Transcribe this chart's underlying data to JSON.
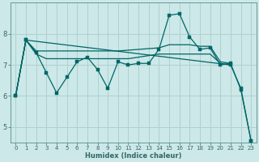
{
  "xlabel": "Humidex (Indice chaleur)",
  "background_color": "#cce8e8",
  "grid_color": "#b0d0d0",
  "line_color": "#006666",
  "spine_color": "#669999",
  "xlim": [
    -0.5,
    23.5
  ],
  "ylim": [
    4.5,
    9.0
  ],
  "xticks": [
    0,
    1,
    2,
    3,
    4,
    5,
    6,
    7,
    8,
    9,
    10,
    11,
    12,
    13,
    14,
    15,
    16,
    17,
    18,
    19,
    20,
    21,
    22,
    23
  ],
  "yticks": [
    5,
    6,
    7,
    8
  ],
  "series": {
    "jagged": {
      "x": [
        0,
        1,
        2,
        3,
        4,
        5,
        6,
        7,
        8,
        9,
        10,
        11,
        12,
        13,
        14,
        15,
        16,
        17,
        18,
        19,
        20,
        21,
        22,
        23
      ],
      "y": [
        6.0,
        7.8,
        7.4,
        6.75,
        6.1,
        6.6,
        7.1,
        7.25,
        6.85,
        6.25,
        7.1,
        7.0,
        7.05,
        7.05,
        7.5,
        8.6,
        8.65,
        7.9,
        7.5,
        7.55,
        7.0,
        7.05,
        6.2,
        4.55
      ]
    },
    "flat_top": {
      "x": [
        0,
        1,
        2,
        10,
        14,
        15,
        16,
        17,
        18,
        19,
        20,
        21
      ],
      "y": [
        6.0,
        7.8,
        7.45,
        7.45,
        7.55,
        7.65,
        7.65,
        7.65,
        7.6,
        7.6,
        7.1,
        7.05
      ]
    },
    "flat_mid": {
      "x": [
        0,
        1,
        2,
        3,
        10,
        11,
        12,
        13,
        14,
        19,
        20,
        21
      ],
      "y": [
        6.0,
        7.8,
        7.35,
        7.2,
        7.2,
        7.2,
        7.25,
        7.3,
        7.35,
        7.35,
        7.05,
        7.0
      ]
    },
    "diagonal": {
      "x": [
        0,
        1,
        21,
        22,
        23
      ],
      "y": [
        6.0,
        7.8,
        7.0,
        6.25,
        4.55
      ]
    }
  }
}
